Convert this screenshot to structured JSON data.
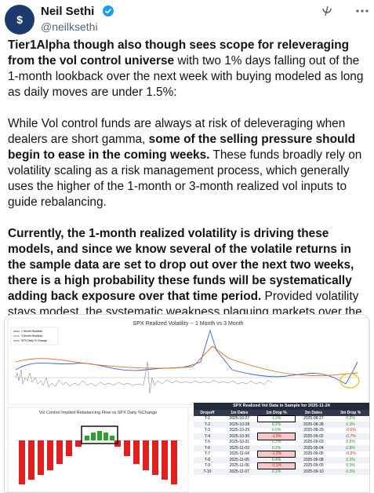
{
  "header": {
    "name": "Neil Sethi",
    "handle": "@neilksethi"
  },
  "paragraphs": [
    {
      "segments": [
        {
          "text": "Tier1Alpha though also though sees scope for releveraging from the vol control universe",
          "bold": true
        },
        {
          "text": " with two 1% days falling out of the 1-month lookback over the next week with buying modeled as long as daily moves are under 1.5%:",
          "bold": false
        }
      ]
    },
    {
      "segments": [
        {
          "text": "While Vol control funds are always at risk of deleveraging when dealers are short gamma, ",
          "bold": false
        },
        {
          "text": "some of the selling pressure should begin to ease in the coming weeks.",
          "bold": true
        },
        {
          "text": " These funds broadly rely on volatility scaling as a risk management process, which generally uses the higher of the 1-month or 3-month realized vol inputs to guide rebalancing.",
          "bold": false
        }
      ]
    },
    {
      "segments": [
        {
          "text": "Currently, the 1-month realized volatility is driving these models, and since we know several of the volatile returns in the sample data are set to drop out over the next two weeks, there is a high probability these funds will be systematically adding back exposure over that time period.",
          "bold": true
        },
        {
          "text": " Provided volatility stays modest, the systematic weakness plaguing markets over the past six weeks should start to materially improve into the end of the year, all else being equal.",
          "bold": false
        }
      ]
    }
  ],
  "image": {
    "top_chart_title": "SPX Realized Volatility -- 1 Month vs 3 Month",
    "legend": [
      "1 Month Realized",
      "3 Month Realized",
      "SPX Daily % Change"
    ],
    "left_chart_title": "Vol Control Implied Rebalancing Flow vs SPX Daily %Change",
    "table": {
      "title": "SPX Realized Vol Data in Sample for 2025-11-24",
      "header": [
        "Dropoff",
        "1m Dates",
        "1m Drop %",
        "3m Dates",
        "3m Drop %"
      ],
      "rows": [
        [
          "T-1",
          "2025-10-27",
          "1.2%",
          "2025-08-27",
          "0.2%"
        ],
        [
          "T-2",
          "2025-10-28",
          "0.2%",
          "2025-08-28",
          "0.3%"
        ],
        [
          "T-3",
          "2025-10-29",
          "0.0%",
          "2025-08-29",
          "-0.6%"
        ],
        [
          "T-4",
          "2025-10-30",
          "-1.0%",
          "2025-09-02",
          "-0.7%"
        ],
        [
          "T-5",
          "2025-10-31",
          "0.3%",
          "2025-09-03",
          "0.5%"
        ],
        [
          "T-6",
          "2025-11-03",
          "0.2%",
          "2025-09-04",
          "0.8%"
        ],
        [
          "T-7",
          "2025-11-04",
          "-1.2%",
          "2025-09-05",
          "-0.3%"
        ],
        [
          "T-8",
          "2025-11-05",
          "0.4%",
          "2025-09-08",
          "0.2%"
        ],
        [
          "T-9",
          "2025-11-06",
          "-1.1%",
          "2025-09-09",
          "0.3%"
        ],
        [
          "T-10",
          "2025-11-07",
          "0.1%",
          "2025-09-10",
          "0.3%"
        ]
      ],
      "highlighted": [
        0,
        3,
        6,
        8
      ]
    }
  }
}
